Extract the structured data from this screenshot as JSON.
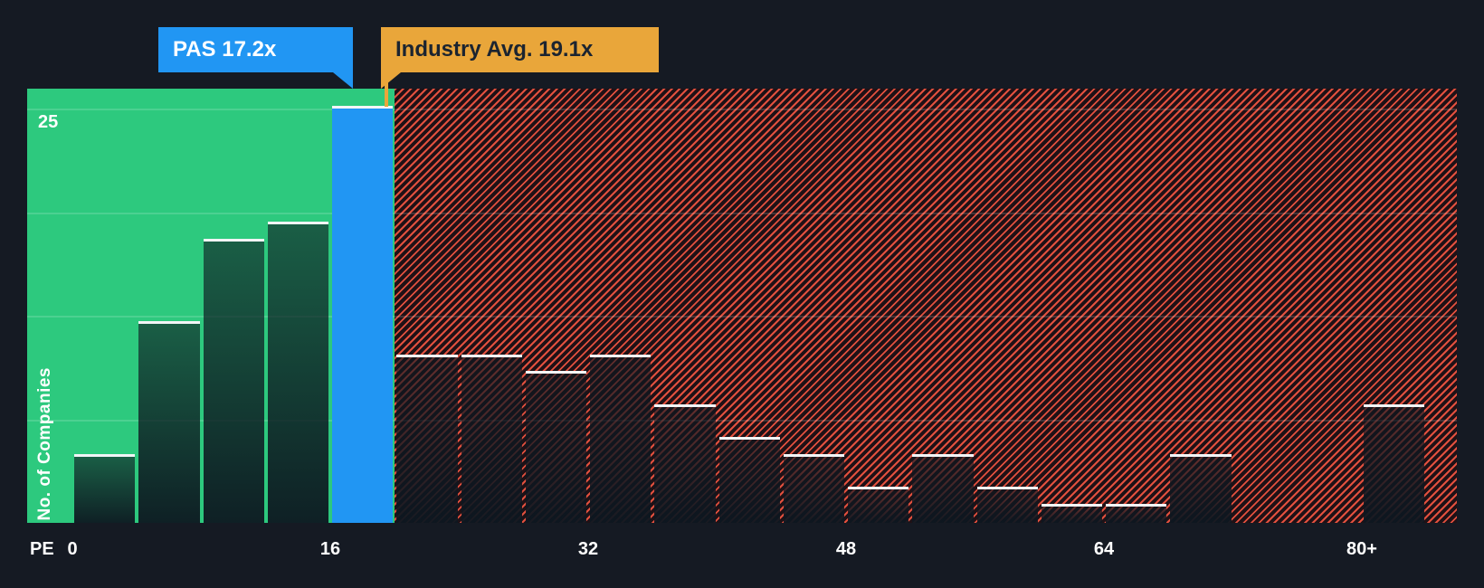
{
  "chart_data": {
    "type": "bar",
    "xlabel": "PE",
    "ylabel": "No. of Companies",
    "ylim": [
      0,
      26
    ],
    "y_max_label": "25",
    "y_gridlines": [
      6.25,
      12.5,
      18.75,
      25
    ],
    "bin_width": 4,
    "x_ticks": [
      {
        "value": 0,
        "label": "0"
      },
      {
        "value": 16,
        "label": "16"
      },
      {
        "value": 32,
        "label": "32"
      },
      {
        "value": 48,
        "label": "48"
      },
      {
        "value": 64,
        "label": "64"
      },
      {
        "value": 80,
        "label": "80+"
      }
    ],
    "bins": [
      {
        "x0": 0,
        "value": 4,
        "zone": "green"
      },
      {
        "x0": 4,
        "value": 12,
        "zone": "green"
      },
      {
        "x0": 8,
        "value": 17,
        "zone": "green"
      },
      {
        "x0": 12,
        "value": 18,
        "zone": "green"
      },
      {
        "x0": 16,
        "value": 25,
        "zone": "highlight"
      },
      {
        "x0": 20,
        "value": 10,
        "zone": "red"
      },
      {
        "x0": 24,
        "value": 10,
        "zone": "red"
      },
      {
        "x0": 28,
        "value": 9,
        "zone": "red"
      },
      {
        "x0": 32,
        "value": 10,
        "zone": "red"
      },
      {
        "x0": 36,
        "value": 7,
        "zone": "red"
      },
      {
        "x0": 40,
        "value": 5,
        "zone": "red"
      },
      {
        "x0": 44,
        "value": 4,
        "zone": "red"
      },
      {
        "x0": 48,
        "value": 2,
        "zone": "red"
      },
      {
        "x0": 52,
        "value": 4,
        "zone": "red"
      },
      {
        "x0": 56,
        "value": 2,
        "zone": "red"
      },
      {
        "x0": 60,
        "value": 1,
        "zone": "red"
      },
      {
        "x0": 64,
        "value": 1,
        "zone": "red"
      },
      {
        "x0": 68,
        "value": 4,
        "zone": "red"
      },
      {
        "x0": 72,
        "value": 0,
        "zone": "red"
      },
      {
        "x0": 76,
        "value": 0,
        "zone": "red"
      },
      {
        "x0": 80,
        "value": 7,
        "zone": "red"
      }
    ],
    "annotations": {
      "company": {
        "label": "PAS 17.2x",
        "pe": 17.2
      },
      "industry": {
        "label": "Industry Avg. 19.1x",
        "pe": 19.1
      }
    },
    "legend": "none",
    "grid": "subtle-horizontal",
    "colors": {
      "background": "#151a23",
      "green_zone": "#2dc97e",
      "red_zone_base": "#1f1116",
      "red_stripe": "#e2503e",
      "company_bar": "#2196f3",
      "company_tooltip_bg": "#2196f3",
      "company_tooltip_text": "#ffffff",
      "industry_tooltip_bg": "#e9a63a",
      "industry_tooltip_text": "#1b2430",
      "bar_fill_top": "rgba(13,23,32,0.60)",
      "bar_fill_bottom": "rgba(13,23,32,0.95)",
      "bar_top_border": "#f2f5f7",
      "axis_text": "#ffffff"
    }
  }
}
